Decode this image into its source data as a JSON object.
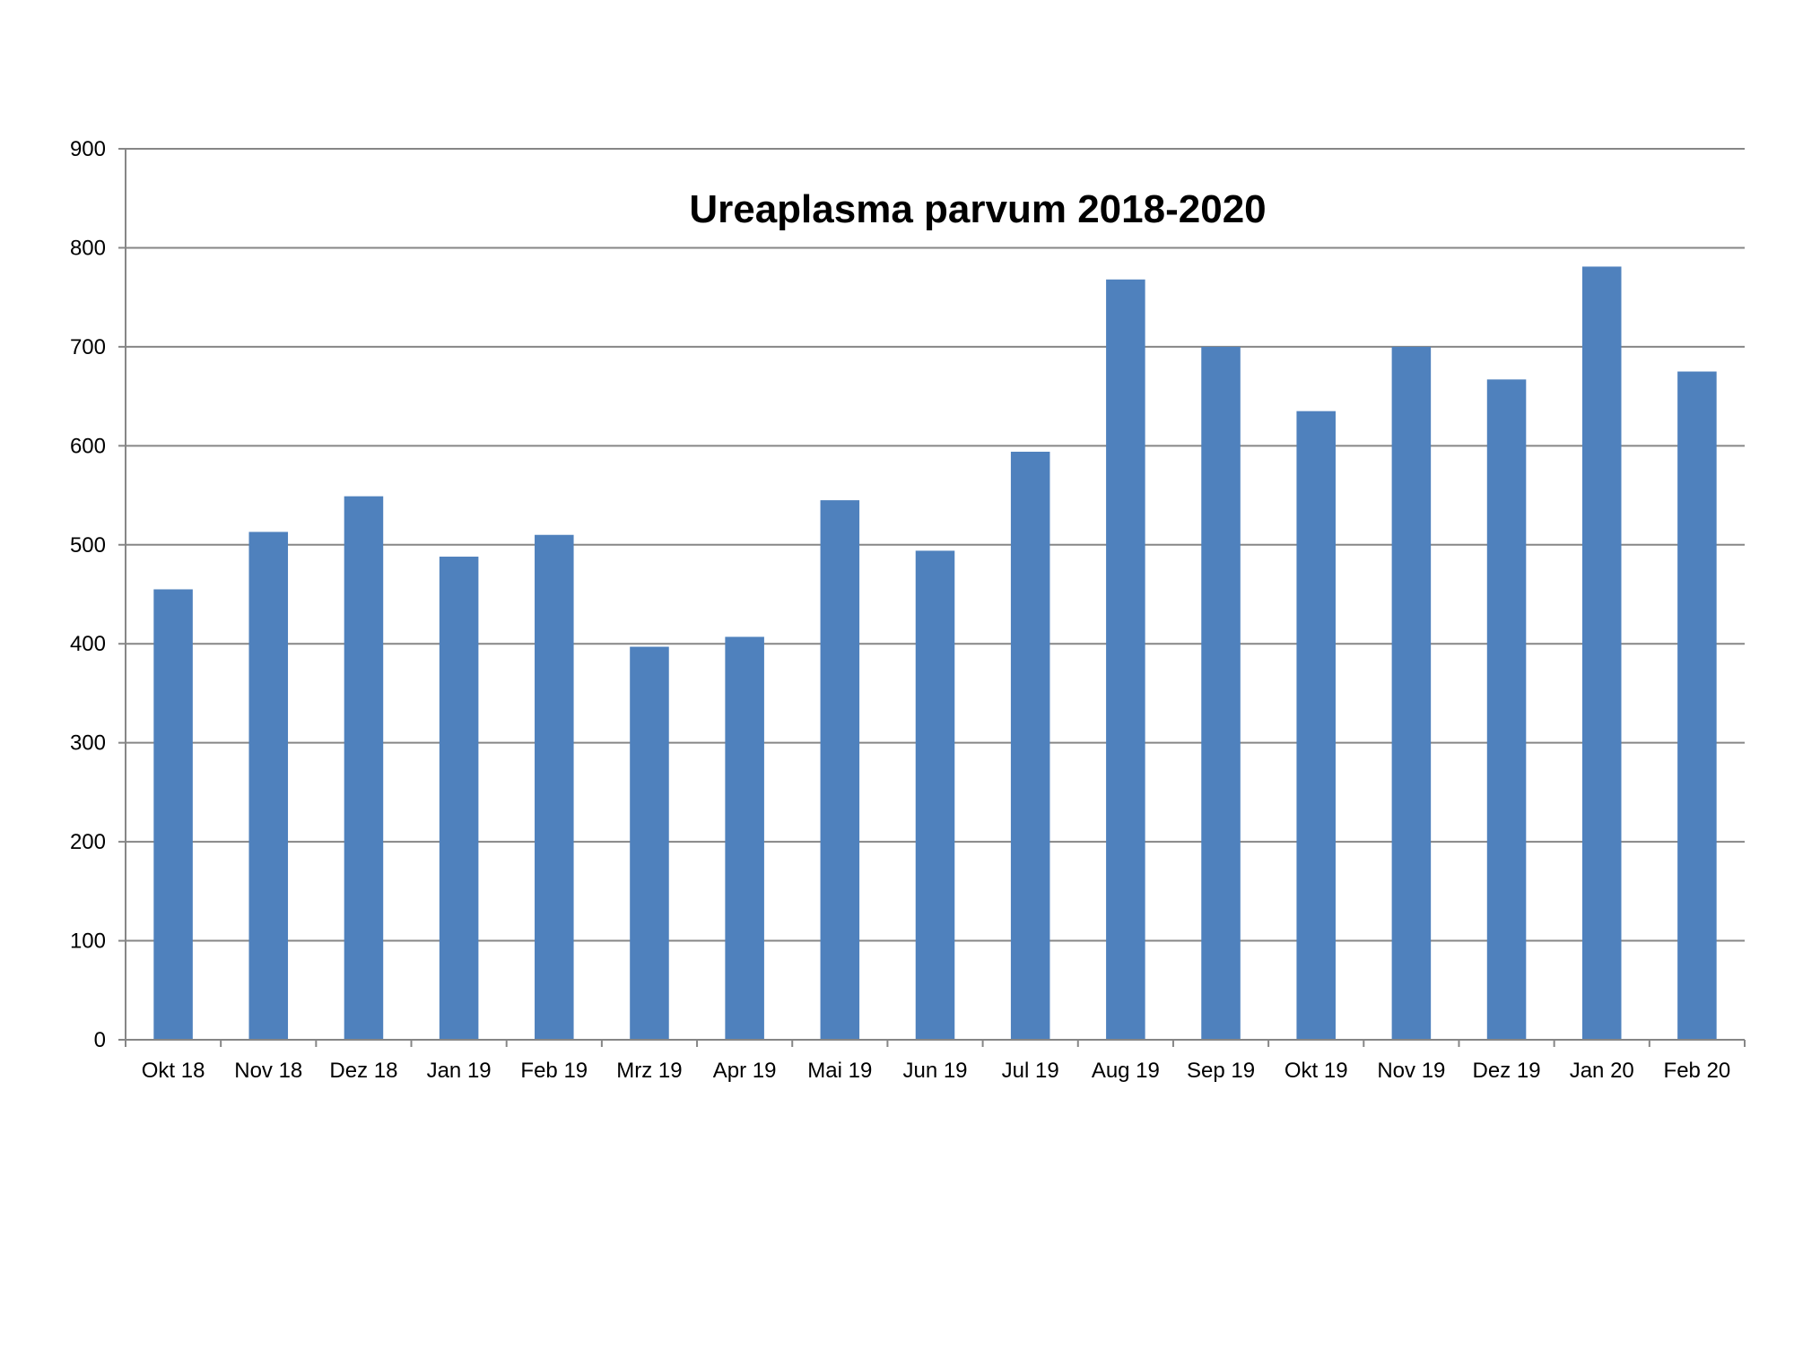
{
  "chart_data": {
    "type": "bar",
    "title": "Ureaplasma parvum 2018-2020",
    "xlabel": "",
    "ylabel": "",
    "categories": [
      "Okt 18",
      "Nov 18",
      "Dez 18",
      "Jan 19",
      "Feb 19",
      "Mrz 19",
      "Apr 19",
      "Mai 19",
      "Jun 19",
      "Jul 19",
      "Aug 19",
      "Sep 19",
      "Okt 19",
      "Nov 19",
      "Dez 19",
      "Jan 20",
      "Feb 20"
    ],
    "values": [
      455,
      513,
      549,
      488,
      510,
      397,
      407,
      545,
      494,
      594,
      768,
      700,
      635,
      700,
      667,
      781,
      675
    ],
    "ylim": [
      0,
      900
    ],
    "yticks": [
      0,
      100,
      200,
      300,
      400,
      500,
      600,
      700,
      800,
      900
    ],
    "grid": true,
    "legend": "none",
    "colors": {
      "bar": "#4f81bd",
      "grid": "#868686",
      "axis": "#868686"
    }
  }
}
